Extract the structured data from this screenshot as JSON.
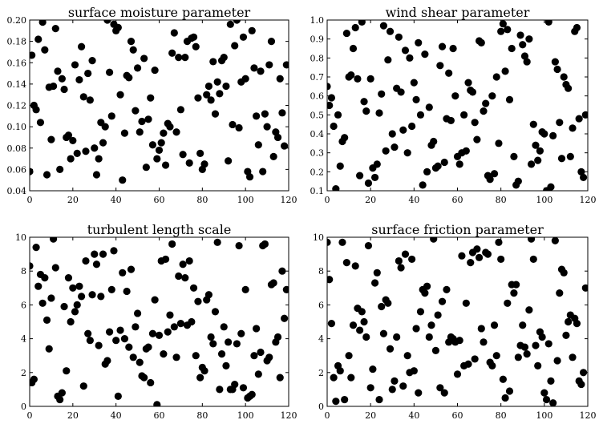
{
  "chart_data": [
    {
      "type": "scatter",
      "title": "surface moisture parameter",
      "color": "#000000",
      "x": [
        0,
        1,
        2,
        3,
        4,
        5,
        6,
        7,
        8,
        9,
        10,
        11,
        12,
        13,
        14,
        15,
        16,
        17,
        18,
        19,
        20,
        21,
        22,
        23,
        24,
        25,
        26,
        27,
        28,
        29,
        30,
        31,
        32,
        33,
        34,
        35,
        36,
        37,
        38,
        39,
        40,
        41,
        42,
        43,
        44,
        45,
        46,
        47,
        48,
        49,
        50,
        51,
        52,
        53,
        54,
        55,
        56,
        57,
        58,
        59,
        60,
        61,
        62,
        63,
        64,
        65,
        66,
        67,
        68,
        69,
        70,
        71,
        72,
        73,
        74,
        75,
        76,
        77,
        78,
        79,
        80,
        81,
        82,
        83,
        84,
        85,
        86,
        87,
        88,
        89,
        90,
        91,
        92,
        93,
        94,
        95,
        96,
        97,
        98,
        99,
        100,
        101,
        102,
        103,
        104,
        105,
        106,
        107,
        108,
        109,
        110,
        111,
        112,
        113,
        114,
        115,
        116,
        117,
        118,
        119
      ],
      "values": [
        0.058,
        0.167,
        0.12,
        0.116,
        0.182,
        0.104,
        0.198,
        0.172,
        0.055,
        0.137,
        0.088,
        0.138,
        0.192,
        0.152,
        0.06,
        0.145,
        0.135,
        0.09,
        0.092,
        0.07,
        0.087,
        0.158,
        0.075,
        0.144,
        0.175,
        0.128,
        0.077,
        0.15,
        0.125,
        0.162,
        0.08,
        0.055,
        0.07,
        0.104,
        0.085,
        0.1,
        0.2,
        0.151,
        0.11,
        0.196,
        0.19,
        0.193,
        0.13,
        0.05,
        0.094,
        0.148,
        0.146,
        0.18,
        0.172,
        0.115,
        0.155,
        0.095,
        0.105,
        0.164,
        0.062,
        0.107,
        0.127,
        0.083,
        0.153,
        0.07,
        0.078,
        0.085,
        0.094,
        0.064,
        0.103,
        0.1,
        0.169,
        0.188,
        0.095,
        0.165,
        0.116,
        0.074,
        0.165,
        0.18,
        0.066,
        0.183,
        0.184,
        0.175,
        0.127,
        0.075,
        0.06,
        0.065,
        0.13,
        0.138,
        0.125,
        0.161,
        0.112,
        0.142,
        0.131,
        0.162,
        0.165,
        0.138,
        0.068,
        0.196,
        0.102,
        0.176,
        0.2,
        0.099,
        0.142,
        0.184,
        0.145,
        0.058,
        0.053,
        0.19,
        0.155,
        0.11,
        0.083,
        0.152,
        0.058,
        0.112,
        0.1,
        0.158,
        0.18,
        0.072,
        0.095,
        0.09,
        0.145,
        0.113,
        0.082,
        0.158
      ],
      "xlim": [
        0,
        120
      ],
      "xticks": [
        0,
        20,
        40,
        60,
        80,
        100,
        120
      ],
      "ylim": [
        0.04,
        0.2
      ],
      "yticks": [
        0.04,
        0.06,
        0.08,
        {
          "value": 0.1,
          "label": "0.10"
        },
        0.12,
        0.14,
        0.16,
        0.18,
        {
          "value": 0.2,
          "label": "0.20"
        }
      ]
    },
    {
      "type": "scatter",
      "title": "wind shear parameter",
      "color": "#000000",
      "x": [
        0,
        1,
        2,
        3,
        4,
        5,
        6,
        7,
        8,
        9,
        10,
        11,
        12,
        13,
        14,
        15,
        16,
        17,
        18,
        19,
        20,
        21,
        22,
        23,
        24,
        25,
        26,
        27,
        28,
        29,
        30,
        31,
        32,
        33,
        34,
        35,
        36,
        37,
        38,
        39,
        40,
        41,
        42,
        43,
        44,
        45,
        46,
        47,
        48,
        49,
        50,
        51,
        52,
        53,
        54,
        55,
        56,
        57,
        58,
        59,
        60,
        61,
        62,
        63,
        64,
        65,
        66,
        67,
        68,
        69,
        70,
        71,
        72,
        73,
        74,
        75,
        76,
        77,
        78,
        79,
        80,
        81,
        82,
        83,
        84,
        85,
        86,
        87,
        88,
        89,
        90,
        91,
        92,
        93,
        94,
        95,
        96,
        97,
        98,
        99,
        100,
        101,
        102,
        103,
        104,
        105,
        106,
        107,
        108,
        109,
        110,
        111,
        112,
        113,
        114,
        115,
        116,
        117,
        118,
        119
      ],
      "values": [
        0.65,
        0.55,
        0.59,
        0.44,
        0.11,
        0.5,
        0.23,
        0.36,
        0.38,
        0.93,
        0.7,
        0.71,
        0.85,
        0.96,
        0.69,
        0.18,
        0.99,
        0.57,
        0.52,
        0.14,
        0.69,
        0.22,
        0.17,
        0.24,
        0.51,
        0.61,
        0.97,
        0.31,
        0.79,
        0.94,
        0.4,
        0.33,
        0.64,
        0.91,
        0.62,
        0.42,
        0.84,
        0.3,
        0.8,
        0.44,
        0.67,
        0.58,
        0.88,
        0.5,
        0.13,
        0.82,
        0.2,
        0.54,
        0.34,
        0.36,
        0.22,
        0.23,
        0.76,
        0.86,
        0.25,
        0.48,
        0.72,
        0.47,
        0.85,
        0.6,
        0.28,
        0.24,
        0.3,
        0.5,
        0.31,
        0.67,
        0.63,
        0.62,
        0.46,
        0.37,
        0.89,
        0.88,
        0.52,
        0.56,
        0.18,
        0.16,
        0.6,
        0.19,
        0.7,
        0.35,
        0.94,
        0.98,
        0.73,
        0.95,
        0.58,
        0.85,
        0.28,
        0.13,
        0.15,
        0.92,
        0.87,
        0.81,
        0.78,
        0.9,
        0.24,
        0.45,
        0.34,
        0.26,
        0.31,
        0.41,
        0.4,
        0.1,
        0.99,
        0.12,
        0.39,
        0.78,
        0.74,
        0.46,
        0.27,
        0.7,
        0.66,
        0.64,
        0.28,
        0.43,
        0.94,
        0.96,
        0.48,
        0.2,
        0.17,
        0.5
      ],
      "xlim": [
        0,
        120
      ],
      "xticks": [
        0,
        20,
        40,
        60,
        80,
        100,
        120
      ],
      "ylim": [
        0.1,
        1
      ],
      "yticks": [
        0.1,
        0.2,
        0.3,
        0.4,
        0.5,
        0.6,
        0.7,
        0.8,
        0.9,
        {
          "value": 1,
          "label": "1.0"
        }
      ]
    },
    {
      "type": "scatter",
      "title": "turbulent length scale",
      "color": "#000000",
      "x": [
        0,
        1,
        2,
        3,
        4,
        5,
        6,
        7,
        8,
        9,
        10,
        11,
        12,
        13,
        14,
        15,
        16,
        17,
        18,
        19,
        20,
        21,
        22,
        23,
        24,
        25,
        26,
        27,
        28,
        29,
        30,
        31,
        32,
        33,
        34,
        35,
        36,
        37,
        38,
        39,
        40,
        41,
        42,
        43,
        44,
        45,
        46,
        47,
        48,
        49,
        50,
        51,
        52,
        53,
        54,
        55,
        56,
        57,
        58,
        59,
        60,
        61,
        62,
        63,
        64,
        65,
        66,
        67,
        68,
        69,
        70,
        71,
        72,
        73,
        74,
        75,
        76,
        77,
        78,
        79,
        80,
        81,
        82,
        83,
        84,
        85,
        86,
        87,
        88,
        89,
        90,
        91,
        92,
        93,
        94,
        95,
        96,
        97,
        98,
        99,
        100,
        101,
        102,
        103,
        104,
        105,
        106,
        107,
        108,
        109,
        110,
        111,
        112,
        113,
        114,
        115,
        116,
        117,
        118,
        119
      ],
      "values": [
        8.3,
        1.4,
        1.6,
        9.4,
        7.1,
        7.8,
        6.1,
        7.6,
        5.1,
        3.4,
        6.4,
        9.9,
        8.2,
        0.6,
        0.4,
        0.8,
        5.9,
        2.1,
        7.6,
        5.0,
        7.0,
        5.6,
        6.0,
        7.1,
        6.5,
        1.2,
        8.6,
        4.3,
        3.9,
        6.6,
        9.0,
        8.4,
        3.6,
        6.5,
        9.0,
        2.5,
        2.7,
        4.4,
        6.9,
        9.2,
        3.9,
        0.6,
        4.5,
        7.9,
        4.0,
        6.8,
        3.5,
        8.1,
        2.9,
        4.7,
        5.5,
        2.6,
        1.8,
        1.7,
        3.4,
        3.5,
        1.4,
        4.3,
        6.3,
        0.1,
        4.2,
        8.6,
        3.1,
        8.7,
        4.4,
        5.4,
        9.6,
        4.7,
        2.9,
        7.7,
        4.9,
        8.4,
        7.6,
        4.8,
        8.6,
        5.0,
        7.0,
        3.0,
        6.2,
        1.7,
        2.3,
        2.1,
        6.3,
        6.6,
        4.1,
        3.7,
        5.6,
        9.7,
        1.0,
        3.1,
        4.7,
        2.4,
        3.8,
        1.0,
        1.0,
        1.3,
        3.7,
        9.5,
        4.3,
        1.1,
        6.9,
        0.5,
        0.6,
        0.7,
        3.0,
        4.6,
        1.9,
        3.2,
        9.5,
        9.6,
        2.7,
        2.9,
        7.2,
        7.3,
        3.8,
        4.1,
        1.7,
        8.0,
        5.2,
        6.9
      ],
      "xlim": [
        0,
        120
      ],
      "xticks": [
        0,
        20,
        40,
        60,
        80,
        100,
        120
      ],
      "ylim": [
        0,
        10
      ],
      "yticks": [
        0,
        2,
        4,
        6,
        8,
        10
      ]
    },
    {
      "type": "scatter",
      "title": "surface friction parameter",
      "color": "#000000",
      "x": [
        0,
        1,
        2,
        3,
        4,
        5,
        6,
        7,
        8,
        9,
        10,
        11,
        12,
        13,
        14,
        15,
        16,
        17,
        18,
        19,
        20,
        21,
        22,
        23,
        24,
        25,
        26,
        27,
        28,
        29,
        30,
        31,
        32,
        33,
        34,
        35,
        36,
        37,
        38,
        39,
        40,
        41,
        42,
        43,
        44,
        45,
        46,
        47,
        48,
        49,
        50,
        51,
        52,
        53,
        54,
        55,
        56,
        57,
        58,
        59,
        60,
        61,
        62,
        63,
        64,
        65,
        66,
        67,
        68,
        69,
        70,
        71,
        72,
        73,
        74,
        75,
        76,
        77,
        78,
        79,
        80,
        81,
        82,
        83,
        84,
        85,
        86,
        87,
        88,
        89,
        90,
        91,
        92,
        93,
        94,
        95,
        96,
        97,
        98,
        99,
        100,
        101,
        102,
        103,
        104,
        105,
        106,
        107,
        108,
        109,
        110,
        111,
        112,
        113,
        114,
        115,
        116,
        117,
        118,
        119
      ],
      "values": [
        9.7,
        7.5,
        4.9,
        1.7,
        0.3,
        2.4,
        2.1,
        9.7,
        0.4,
        8.5,
        3.0,
        1.7,
        4.8,
        8.3,
        5.8,
        4.5,
        5.6,
        5.0,
        4.1,
        9.5,
        1.1,
        2.2,
        7.3,
        7.9,
        0.4,
        5.9,
        4.3,
        6.3,
        6.1,
        3.4,
        1.0,
        1.5,
        4.1,
        8.6,
        8.2,
        1.2,
        9.0,
        3.0,
        2.0,
        8.7,
        2.1,
        4.6,
        0.8,
        5.6,
        6.9,
        6.7,
        7.1,
        4.1,
        4.8,
        9.9,
        3.3,
        5.4,
        1.1,
        6.2,
        0.8,
        6.9,
        3.8,
        4.1,
        4.0,
        3.8,
        1.9,
        3.9,
        8.9,
        2.4,
        6.1,
        2.5,
        8.5,
        9.1,
        2.8,
        9.3,
        8.8,
        4.6,
        3.8,
        9.1,
        9.0,
        2.6,
        2.4,
        4.8,
        3.0,
        9.7,
        8.7,
        1.6,
        0.5,
        6.1,
        0.9,
        7.2,
        6.7,
        7.2,
        2.9,
        3.6,
        4.8,
        3.5,
        3.1,
        5.7,
        9.9,
        8.7,
        3.6,
        2.4,
        4.4,
        4.1,
        0.8,
        0.4,
        3.7,
        1.5,
        0.2,
        9.8,
        2.7,
        6.7,
        8.1,
        7.9,
        4.2,
        5.0,
        5.4,
        2.9,
        5.2,
        4.9,
        1.5,
        1.3,
        2.0,
        7.0
      ],
      "xlim": [
        0,
        120
      ],
      "xticks": [
        0,
        20,
        40,
        60,
        80,
        100,
        120
      ],
      "ylim": [
        0,
        10
      ],
      "yticks": [
        0,
        2,
        4,
        6,
        8,
        10
      ]
    }
  ]
}
